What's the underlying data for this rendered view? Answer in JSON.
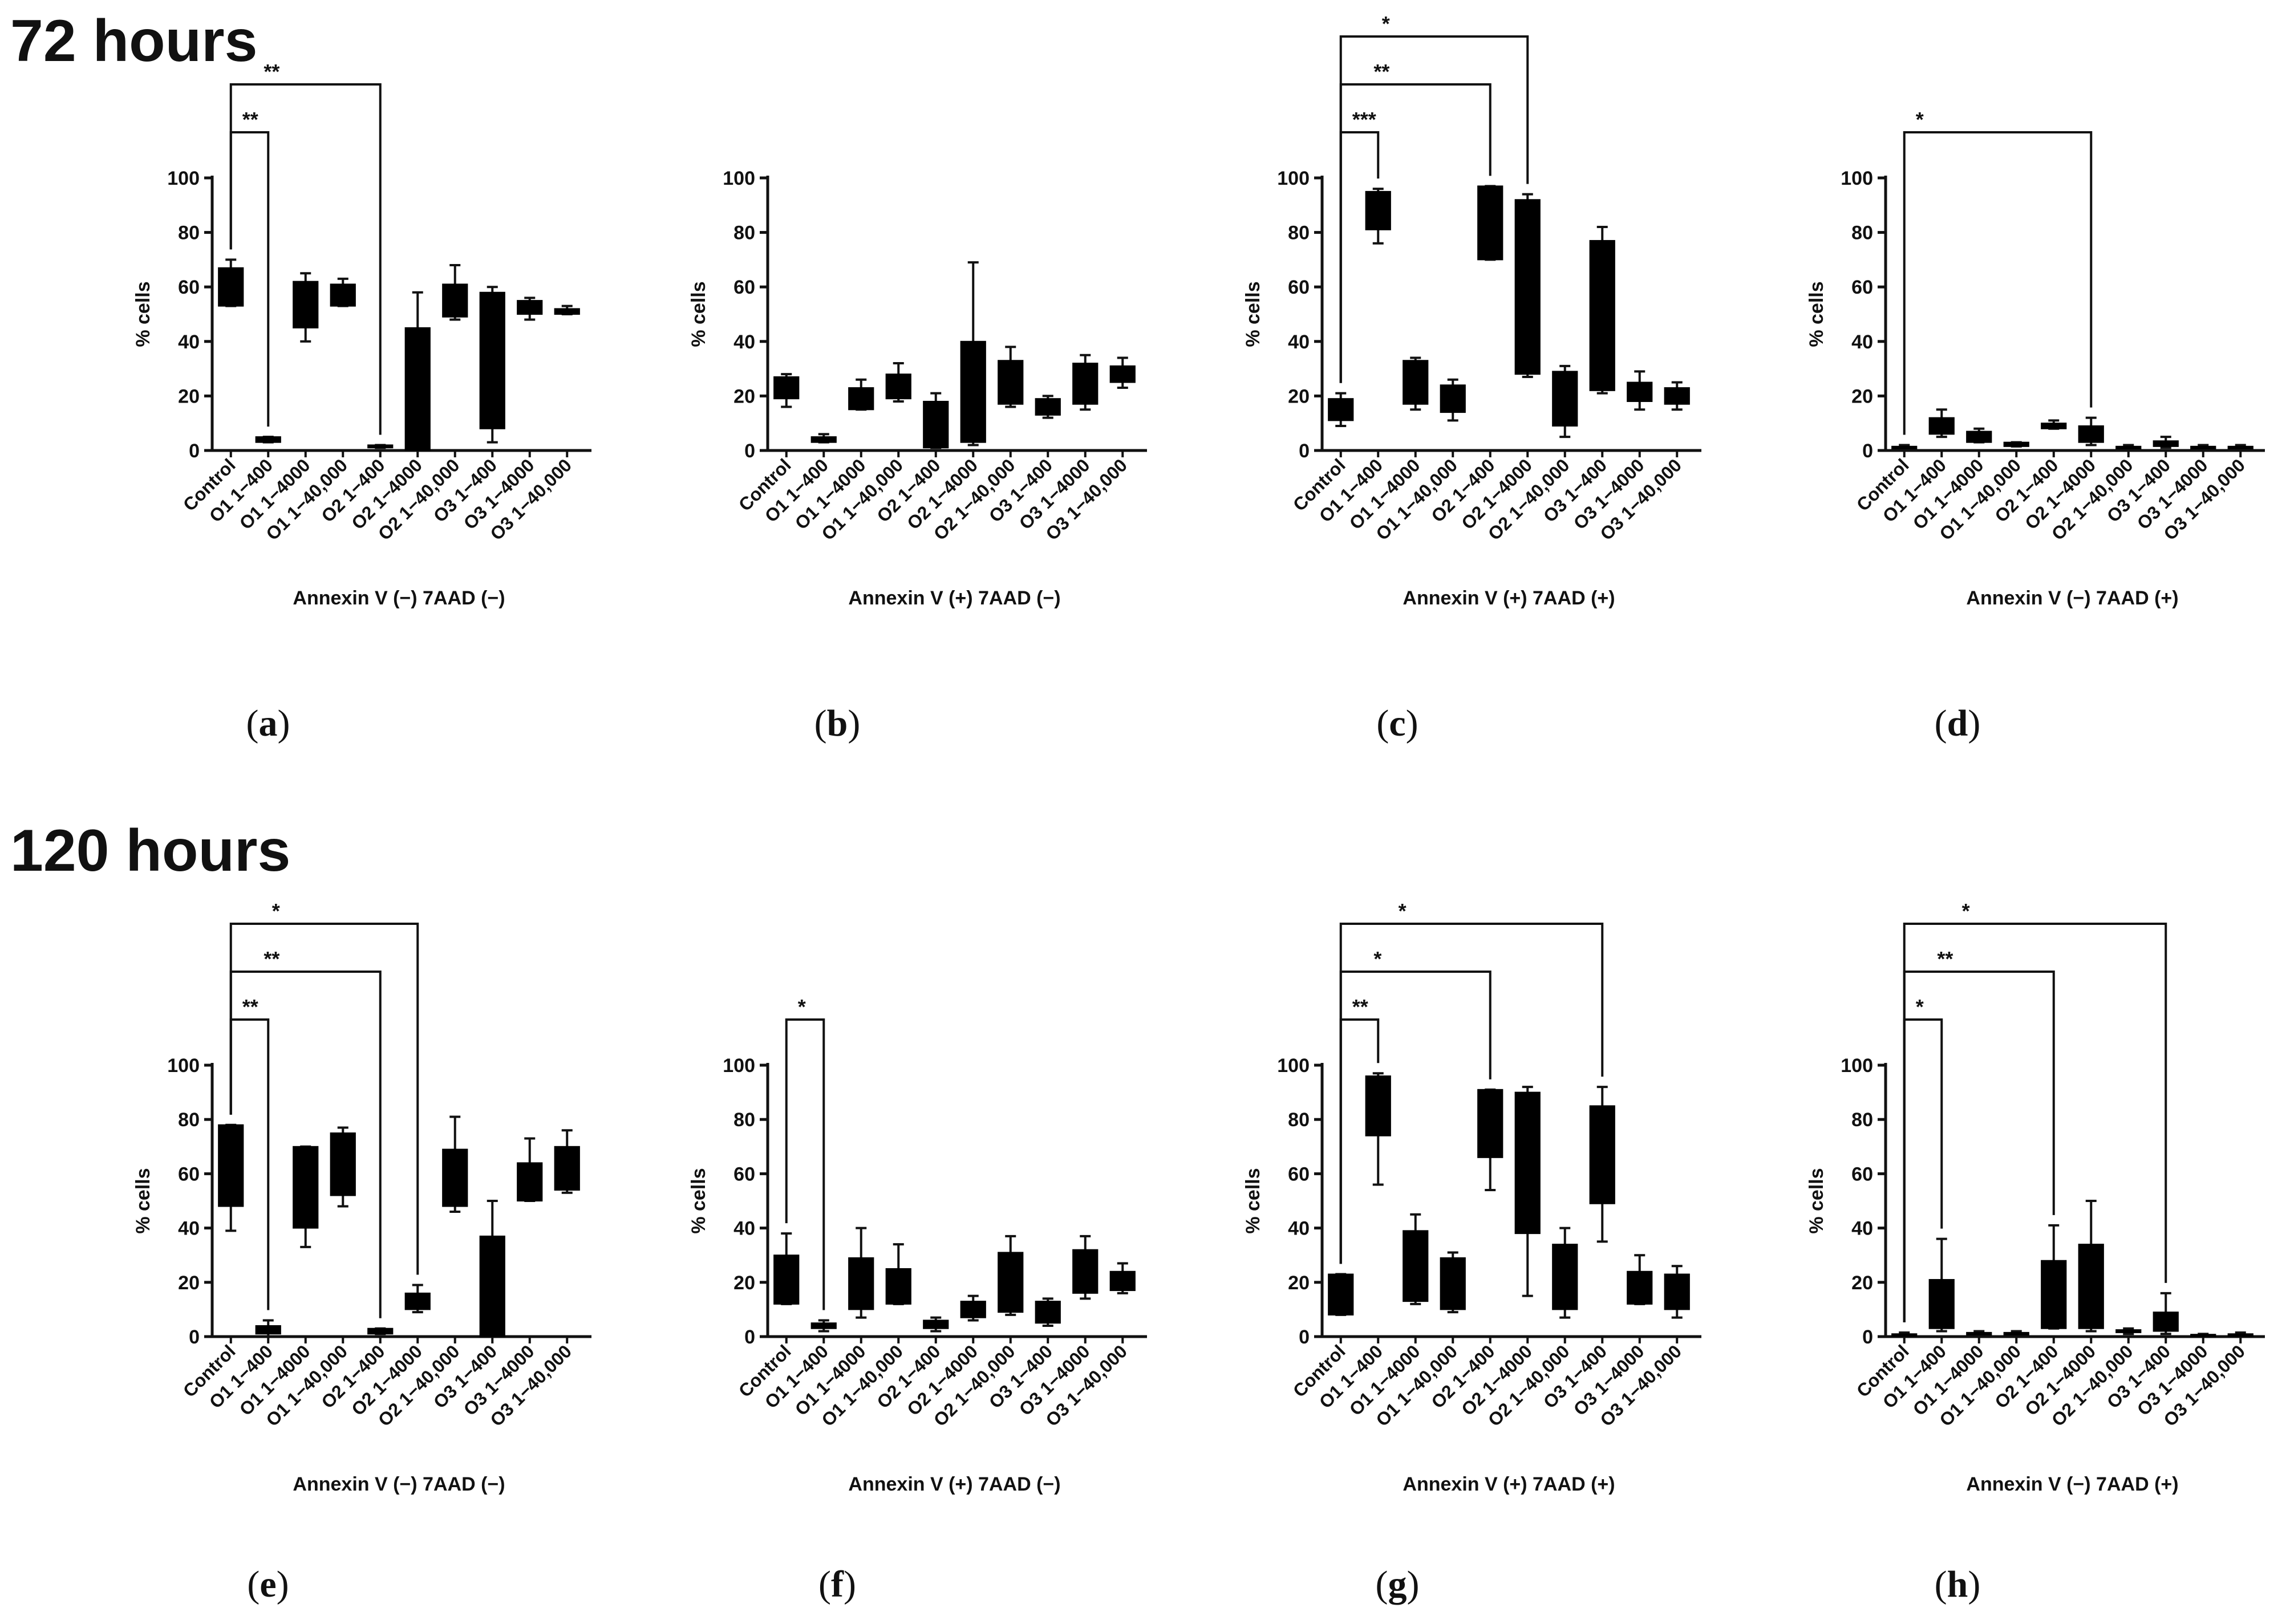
{
  "sections": {
    "top_title": "72 hours",
    "bottom_title": "120 hours"
  },
  "chart_data": [
    {
      "type": "box",
      "panel": "(a)",
      "label_letter": "a",
      "timepoint": "72 hours",
      "xlabel": "Annexin V (−) 7AAD (−)",
      "ylabel": "% cells",
      "ylim": [
        0,
        100
      ],
      "yticks": [
        0,
        20,
        40,
        60,
        80,
        100
      ],
      "categories": [
        "Control",
        "O1 1−400",
        "O1 1−4000",
        "O1 1−40,000",
        "O2 1−400",
        "O2 1−4000",
        "O2 1−40,000",
        "O3 1−400",
        "O3 1−4000",
        "O3 1−40,000"
      ],
      "boxes": [
        [
          53,
          53,
          67,
          67,
          70
        ],
        [
          3,
          3,
          5,
          5,
          5
        ],
        [
          40,
          45,
          62,
          62,
          65
        ],
        [
          53,
          53,
          61,
          61,
          63
        ],
        [
          1,
          1,
          2,
          2,
          2
        ],
        [
          0,
          0,
          45,
          45,
          58
        ],
        [
          48,
          49,
          61,
          61,
          68
        ],
        [
          3,
          8,
          58,
          58,
          60
        ],
        [
          48,
          50,
          55,
          55,
          56
        ],
        [
          50,
          50,
          52,
          52,
          53
        ]
      ],
      "significance": [
        {
          "from": 0,
          "to": 1,
          "label": "**",
          "level": 0
        },
        {
          "from": 0,
          "to": 4,
          "label": "**",
          "level": 1
        }
      ]
    },
    {
      "type": "box",
      "panel": "(b)",
      "label_letter": "b",
      "timepoint": "72 hours",
      "xlabel": "Annexin V (+) 7AAD (−)",
      "ylabel": "% cells",
      "ylim": [
        0,
        100
      ],
      "yticks": [
        0,
        20,
        40,
        60,
        80,
        100
      ],
      "categories": [
        "Control",
        "O1 1−400",
        "O1 1−4000",
        "O1 1−40,000",
        "O2 1−400",
        "O2 1−4000",
        "O2 1−40,000",
        "O3 1−400",
        "O3 1−4000",
        "O3 1−40,000"
      ],
      "boxes": [
        [
          16,
          19,
          27,
          27,
          28
        ],
        [
          3,
          3,
          5,
          5,
          6
        ],
        [
          15,
          15,
          23,
          23,
          26
        ],
        [
          18,
          19,
          28,
          28,
          32
        ],
        [
          1,
          1,
          18,
          18,
          21
        ],
        [
          2,
          3,
          40,
          40,
          69
        ],
        [
          16,
          17,
          33,
          33,
          38
        ],
        [
          12,
          13,
          19,
          19,
          20
        ],
        [
          15,
          17,
          32,
          32,
          35
        ],
        [
          23,
          25,
          31,
          31,
          34
        ]
      ],
      "significance": []
    },
    {
      "type": "box",
      "panel": "(c)",
      "label_letter": "c",
      "timepoint": "72 hours",
      "xlabel": "Annexin V (+) 7AAD (+)",
      "ylabel": "% cells",
      "ylim": [
        0,
        100
      ],
      "yticks": [
        0,
        20,
        40,
        60,
        80,
        100
      ],
      "categories": [
        "Control",
        "O1 1−400",
        "O1 1−4000",
        "O1 1−40,000",
        "O2 1−400",
        "O2 1−4000",
        "O2 1−40,000",
        "O3 1−400",
        "O3 1−4000",
        "O3 1−40,000"
      ],
      "boxes": [
        [
          9,
          11,
          19,
          19,
          21
        ],
        [
          76,
          81,
          95,
          95,
          96
        ],
        [
          15,
          17,
          33,
          33,
          34
        ],
        [
          11,
          14,
          24,
          24,
          26
        ],
        [
          70,
          70,
          97,
          97,
          97
        ],
        [
          27,
          28,
          92,
          92,
          94
        ],
        [
          5,
          9,
          29,
          29,
          31
        ],
        [
          21,
          22,
          77,
          77,
          82
        ],
        [
          15,
          18,
          25,
          25,
          29
        ],
        [
          15,
          17,
          23,
          23,
          25
        ]
      ],
      "significance": [
        {
          "from": 0,
          "to": 1,
          "label": "***",
          "level": 0
        },
        {
          "from": 0,
          "to": 4,
          "label": "**",
          "level": 1
        },
        {
          "from": 0,
          "to": 5,
          "label": "*",
          "level": 2
        }
      ]
    },
    {
      "type": "box",
      "panel": "(d)",
      "label_letter": "d",
      "timepoint": "72 hours",
      "xlabel": "Annexin V (−) 7AAD (+)",
      "ylabel": "% cells",
      "ylim": [
        0,
        100
      ],
      "yticks": [
        0,
        20,
        40,
        60,
        80,
        100
      ],
      "categories": [
        "Control",
        "O1 1−400",
        "O1 1−4000",
        "O1 1−40,000",
        "O2 1−400",
        "O2 1−4000",
        "O2 1−40,000",
        "O3 1−400",
        "O3 1−4000",
        "O3 1−40,000"
      ],
      "boxes": [
        [
          0.5,
          0.8,
          1.5,
          1.5,
          2
        ],
        [
          5,
          6,
          12,
          12,
          15
        ],
        [
          3,
          3,
          7,
          7,
          8
        ],
        [
          1.5,
          1.5,
          3,
          3,
          3
        ],
        [
          8,
          8,
          10,
          10,
          11
        ],
        [
          2,
          3,
          9,
          9,
          12
        ],
        [
          0.5,
          0.8,
          1.5,
          1.5,
          2
        ],
        [
          1,
          1.5,
          3.5,
          3.5,
          5
        ],
        [
          0.5,
          0.8,
          1.5,
          1.5,
          2
        ],
        [
          0.5,
          0.8,
          1.5,
          1.5,
          2
        ]
      ],
      "significance": [
        {
          "from": 0,
          "to": 5,
          "label": "*",
          "level": 0
        }
      ]
    },
    {
      "type": "box",
      "panel": "(e)",
      "label_letter": "e",
      "timepoint": "120 hours",
      "xlabel": "Annexin V (−) 7AAD (−)",
      "ylabel": "% cells",
      "ylim": [
        0,
        100
      ],
      "yticks": [
        0,
        20,
        40,
        60,
        80,
        100
      ],
      "categories": [
        "Control",
        "O1 1−400",
        "O1 1−4000",
        "O1 1−40,000",
        "O2 1−400",
        "O2 1−4000",
        "O2 1−40,000",
        "O3 1−400",
        "O3 1−4000",
        "O3 1−40,000"
      ],
      "boxes": [
        [
          39,
          48,
          78,
          78,
          78
        ],
        [
          0,
          1,
          4,
          4,
          6
        ],
        [
          33,
          40,
          70,
          70,
          70
        ],
        [
          48,
          52,
          75,
          75,
          77
        ],
        [
          1,
          1,
          3,
          3,
          3
        ],
        [
          9,
          10,
          16,
          16,
          19
        ],
        [
          46,
          48,
          69,
          69,
          81
        ],
        [
          0,
          0,
          37,
          37,
          50
        ],
        [
          50,
          50,
          64,
          64,
          73
        ],
        [
          53,
          54,
          70,
          70,
          76
        ]
      ],
      "significance": [
        {
          "from": 0,
          "to": 1,
          "label": "**",
          "level": 0
        },
        {
          "from": 0,
          "to": 4,
          "label": "**",
          "level": 1
        },
        {
          "from": 0,
          "to": 5,
          "label": "*",
          "level": 2
        }
      ]
    },
    {
      "type": "box",
      "panel": "(f)",
      "label_letter": "f",
      "timepoint": "120 hours",
      "xlabel": "Annexin V (+) 7AAD (−)",
      "ylabel": "% cells",
      "ylim": [
        0,
        100
      ],
      "yticks": [
        0,
        20,
        40,
        60,
        80,
        100
      ],
      "categories": [
        "Control",
        "O1 1−400",
        "O1 1−4000",
        "O1 1−40,000",
        "O2 1−400",
        "O2 1−4000",
        "O2 1−40,000",
        "O3 1−400",
        "O3 1−4000",
        "O3 1−40,000"
      ],
      "boxes": [
        [
          12,
          12,
          30,
          30,
          38
        ],
        [
          2,
          3,
          5,
          5,
          6
        ],
        [
          7,
          10,
          29,
          29,
          40
        ],
        [
          12,
          12,
          25,
          25,
          34
        ],
        [
          2,
          3,
          6,
          6,
          7
        ],
        [
          6,
          7,
          13,
          13,
          15
        ],
        [
          8,
          9,
          31,
          31,
          37
        ],
        [
          4,
          5,
          13,
          13,
          14
        ],
        [
          14,
          16,
          32,
          32,
          37
        ],
        [
          16,
          17,
          24,
          24,
          27
        ]
      ],
      "significance": [
        {
          "from": 0,
          "to": 1,
          "label": "*",
          "level": 0
        }
      ]
    },
    {
      "type": "box",
      "panel": "(g)",
      "label_letter": "g",
      "timepoint": "120 hours",
      "xlabel": "Annexin V (+) 7AAD (+)",
      "ylabel": "% cells",
      "ylim": [
        0,
        100
      ],
      "yticks": [
        0,
        20,
        40,
        60,
        80,
        100
      ],
      "categories": [
        "Control",
        "O1 1−400",
        "O1 1−4000",
        "O1 1−40,000",
        "O2 1−400",
        "O2 1−4000",
        "O2 1−40,000",
        "O3 1−400",
        "O3 1−4000",
        "O3 1−40,000"
      ],
      "boxes": [
        [
          8,
          8,
          23,
          23,
          23
        ],
        [
          56,
          74,
          96,
          96,
          97
        ],
        [
          12,
          13,
          39,
          39,
          45
        ],
        [
          9,
          10,
          29,
          29,
          31
        ],
        [
          54,
          66,
          91,
          91,
          91
        ],
        [
          15,
          38,
          90,
          90,
          92
        ],
        [
          7,
          10,
          34,
          34,
          40
        ],
        [
          35,
          49,
          85,
          85,
          92
        ],
        [
          12,
          12,
          24,
          24,
          30
        ],
        [
          7,
          10,
          23,
          23,
          26
        ]
      ],
      "significance": [
        {
          "from": 0,
          "to": 1,
          "label": "**",
          "level": 0
        },
        {
          "from": 0,
          "to": 4,
          "label": "*",
          "level": 1
        },
        {
          "from": 0,
          "to": 7,
          "label": "*",
          "level": 2
        }
      ]
    },
    {
      "type": "box",
      "panel": "(h)",
      "label_letter": "h",
      "timepoint": "120 hours",
      "xlabel": "Annexin V (−) 7AAD (+)",
      "ylabel": "% cells",
      "ylim": [
        0,
        100
      ],
      "yticks": [
        0,
        20,
        40,
        60,
        80,
        100
      ],
      "categories": [
        "Control",
        "O1 1−400",
        "O1 1−4000",
        "O1 1−40,000",
        "O2 1−400",
        "O2 1−4000",
        "O2 1−40,000",
        "O3 1−400",
        "O3 1−4000",
        "O3 1−40,000"
      ],
      "boxes": [
        [
          0.3,
          0.5,
          1,
          1,
          1.5
        ],
        [
          2,
          3,
          21,
          21,
          36
        ],
        [
          0.5,
          1,
          1.5,
          1.5,
          2
        ],
        [
          0.5,
          1,
          1.5,
          1.5,
          2
        ],
        [
          3,
          3,
          28,
          28,
          41
        ],
        [
          2,
          3,
          34,
          34,
          50
        ],
        [
          1,
          1.5,
          2.5,
          2.5,
          3
        ],
        [
          1,
          2,
          9,
          9,
          16
        ],
        [
          0.2,
          0.3,
          0.8,
          0.8,
          1
        ],
        [
          0.2,
          0.5,
          1,
          1,
          1.5
        ]
      ],
      "significance": [
        {
          "from": 0,
          "to": 1,
          "label": "*",
          "level": 0
        },
        {
          "from": 0,
          "to": 4,
          "label": "**",
          "level": 1
        },
        {
          "from": 0,
          "to": 7,
          "label": "*",
          "level": 2
        }
      ]
    }
  ]
}
